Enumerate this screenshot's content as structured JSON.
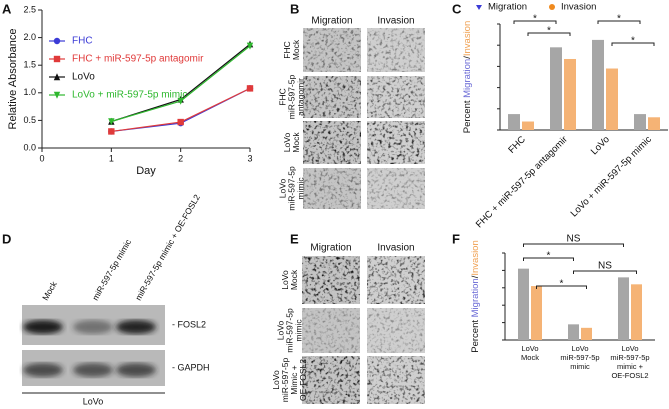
{
  "panel_labels": [
    "A",
    "B",
    "C",
    "D",
    "E",
    "F"
  ],
  "chart_data": [
    {
      "type": "line",
      "xlabel": "Day",
      "ylabel": "Relative Absorbance",
      "x": [
        1,
        2,
        3
      ],
      "xlim": [
        0,
        3
      ],
      "xticks": [
        0,
        1,
        2,
        3
      ],
      "ylim": [
        0,
        2.5
      ],
      "yticks": [
        {
          "value": 0,
          "label": "0.0"
        },
        0.5,
        {
          "value": 1,
          "label": "1.0"
        },
        1.5,
        {
          "value": 2,
          "label": "2.0"
        },
        2.5
      ],
      "series": [
        {
          "name": "FHC",
          "color": "#3b3bd6",
          "marker": "circle",
          "values": [
            0.3,
            0.45,
            1.08
          ]
        },
        {
          "name": "FHC + miR-597-5p antagomir",
          "color": "#e03a3a",
          "marker": "square",
          "values": [
            0.3,
            0.47,
            1.08
          ]
        },
        {
          "name": "LoVo",
          "color": "#111111",
          "marker": "triangle-up",
          "values": [
            0.48,
            0.88,
            1.88
          ]
        },
        {
          "name": "LoVo + miR-597-5p mimic",
          "color": "#2fb82f",
          "marker": "triangle-down",
          "values": [
            0.48,
            0.85,
            1.85
          ]
        }
      ]
    },
    {
      "type": "bar",
      "ylabel_prefix": "Percent",
      "ylabel_separator": "/",
      "ylim": [
        0,
        100
      ],
      "categories": [
        [
          "FHC"
        ],
        [
          "FHC + miR-597-5p antagomir"
        ],
        [
          "LoVo"
        ],
        [
          "LoVo + miR-597-5p mimic"
        ]
      ],
      "series": [
        {
          "name": "Migration",
          "color": "#a6a6a6",
          "label_color": "#6b6bd6",
          "values": [
            15,
            78,
            85,
            15
          ]
        },
        {
          "name": "Invasion",
          "color": "#f5b375",
          "label_color": "#f0a050",
          "values": [
            8,
            67,
            58,
            12
          ]
        }
      ],
      "annotations": [
        "*",
        "*",
        "*",
        "*"
      ]
    },
    {
      "type": "bar",
      "ylabel_prefix": "Percent",
      "ylabel_separator": "/",
      "ylim": [
        0,
        100
      ],
      "categories": [
        [
          "LoVo",
          "Mock"
        ],
        [
          "LoVo",
          "miR-597-5p",
          "mimic"
        ],
        [
          "LoVo",
          "miR-597-5p",
          "mimic +",
          "OE-FOSL2"
        ]
      ],
      "series": [
        {
          "name": "Migration",
          "color": "#a6a6a6",
          "label_color": "#6b6bd6",
          "values": [
            82,
            18,
            72
          ]
        },
        {
          "name": "Invasion",
          "color": "#f5b375",
          "label_color": "#f0a050",
          "values": [
            62,
            14,
            64
          ]
        }
      ],
      "annotations": [
        "NS",
        "*",
        "NS",
        "*"
      ]
    }
  ],
  "panel_b": {
    "columns": [
      "Migration",
      "Invasion"
    ],
    "rows": [
      [
        "FHC",
        "Mock"
      ],
      [
        "FHC",
        "miR-597-5p",
        "antagomir"
      ],
      [
        "LoVo",
        "Mock"
      ],
      [
        "LoVo",
        "miR-597-5p",
        "mimic"
      ]
    ]
  },
  "panel_d": {
    "lanes": [
      "Mock",
      "miR-597-5p mimic",
      "miR-597-5p mimic + OE-FOSL2"
    ],
    "bands": [
      "- FOSL2",
      "- GAPDH"
    ],
    "cell_line": "LoVo"
  },
  "panel_e": {
    "columns": [
      "Migration",
      "Invasion"
    ],
    "rows": [
      [
        "LoVo",
        "Mock"
      ],
      [
        "LoVo",
        "miR-597-5p",
        "mimic"
      ],
      [
        "LoVo",
        "miR-597-5p",
        "Mimic +",
        "OE-FOSL2"
      ]
    ]
  }
}
